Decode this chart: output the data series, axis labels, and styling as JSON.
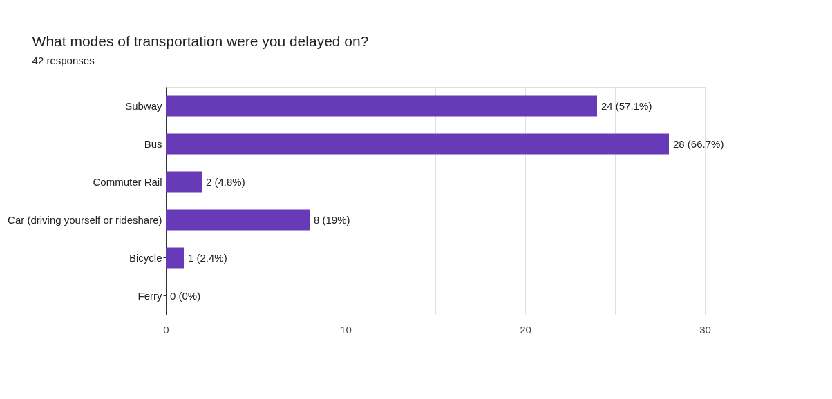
{
  "chart_data": {
    "type": "bar",
    "orientation": "horizontal",
    "title": "What modes of transportation were you delayed on?",
    "subtitle": "42 responses",
    "categories": [
      "Subway",
      "Bus",
      "Commuter Rail",
      "Car (driving yourself or rideshare)",
      "Bicycle",
      "Ferry"
    ],
    "values": [
      24,
      28,
      2,
      8,
      1,
      0
    ],
    "color": "#673ab7",
    "value_labels": [
      "24 (57.1%)",
      "28 (66.7%)",
      "2 (4.8%)",
      "8 (19%)",
      "1 (2.4%)",
      "0 (0%)"
    ],
    "xlim": [
      0,
      30
    ],
    "xticks": [
      0,
      {
        "value": 5,
        "label": null
      },
      10,
      {
        "value": 15,
        "label": null
      },
      20,
      {
        "value": 25,
        "label": null
      },
      30
    ],
    "grid": "x"
  }
}
